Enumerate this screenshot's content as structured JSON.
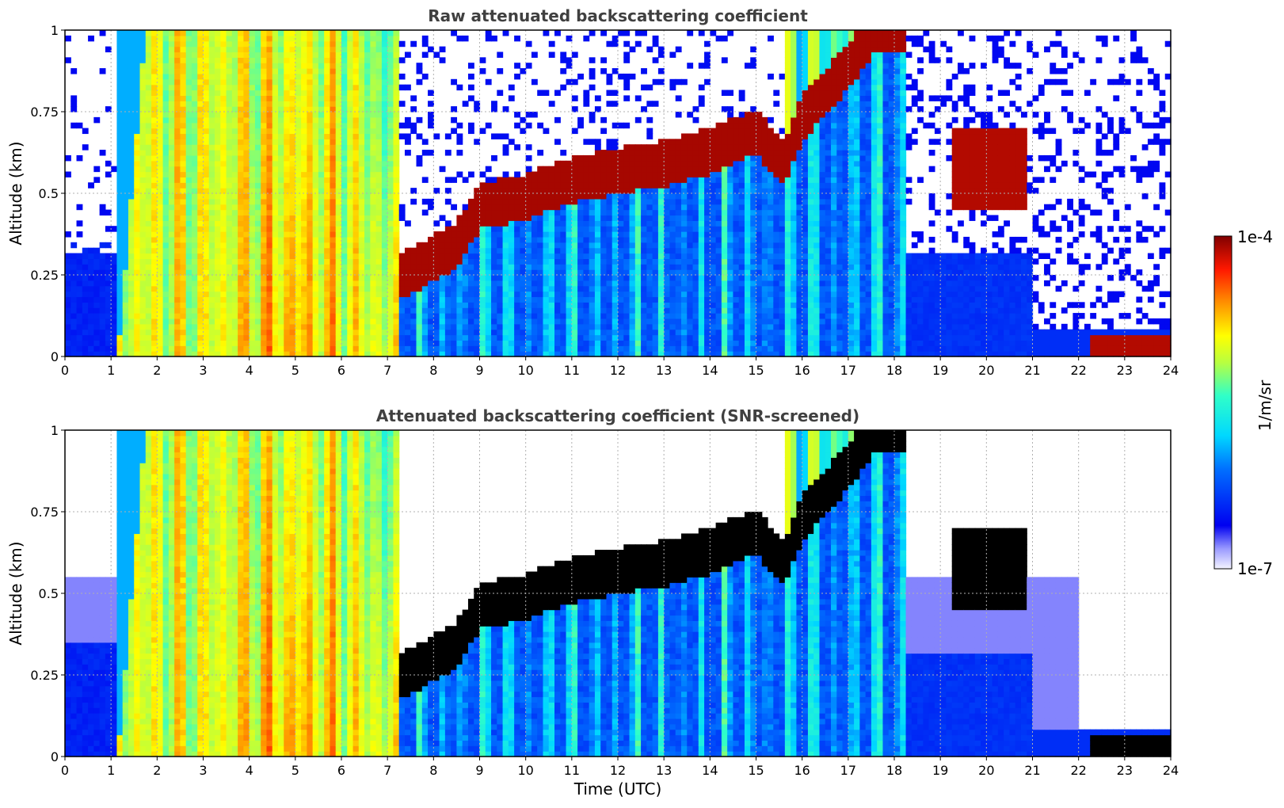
{
  "chart_data": [
    {
      "type": "heatmap",
      "title": "Raw attenuated backscattering coefficient",
      "ylabel": "Altitude (km)",
      "xlabel": "",
      "xlim": [
        0,
        24
      ],
      "ylim": [
        0,
        1
      ],
      "x_ticks": [
        "0",
        "1",
        "2",
        "3",
        "4",
        "5",
        "6",
        "7",
        "8",
        "9",
        "10",
        "11",
        "12",
        "13",
        "14",
        "15",
        "16",
        "17",
        "18",
        "19",
        "20",
        "21",
        "22",
        "23",
        "24"
      ],
      "y_ticks": [
        "0",
        "0.25",
        "0.5",
        "0.75",
        "1"
      ],
      "grid": true,
      "log_color_scale": true,
      "features": {
        "fog_layer": {
          "x": [
            1.0,
            7.2
          ],
          "y": [
            0,
            1.0
          ],
          "level": 0.65
        },
        "rising_cloud_base": [
          [
            7.2,
            0.23
          ],
          [
            8.5,
            0.33
          ],
          [
            9,
            0.45
          ],
          [
            10,
            0.48
          ],
          [
            11,
            0.53
          ],
          [
            12,
            0.56
          ],
          [
            13,
            0.58
          ],
          [
            14,
            0.62
          ],
          [
            15,
            0.68
          ],
          [
            15.6,
            0.58
          ],
          [
            16,
            0.72
          ],
          [
            17,
            0.88
          ],
          [
            17.6,
            1.0
          ]
        ],
        "late_cloud": {
          "x": [
            19.2,
            20.8
          ],
          "y": [
            0.45,
            0.7
          ]
        },
        "surface_layer": {
          "x": [
            22.2,
            24
          ],
          "y": [
            0.0,
            0.06
          ]
        }
      }
    },
    {
      "type": "heatmap",
      "title": "Attenuated backscattering coefficient (SNR-screened)",
      "ylabel": "Altitude (km)",
      "xlabel": "Time (UTC)",
      "xlim": [
        0,
        24
      ],
      "ylim": [
        0,
        1
      ],
      "x_ticks": [
        "0",
        "1",
        "2",
        "3",
        "4",
        "5",
        "6",
        "7",
        "8",
        "9",
        "10",
        "11",
        "12",
        "13",
        "14",
        "15",
        "16",
        "17",
        "18",
        "19",
        "20",
        "21",
        "22",
        "23",
        "24"
      ],
      "y_ticks": [
        "0",
        "0.25",
        "0.5",
        "0.75",
        "1"
      ],
      "grid": true,
      "log_color_scale": true
    }
  ],
  "colorbar": {
    "max_label": "1e-4",
    "min_label": "1e-7",
    "units": "1/m/sr",
    "scale": "log"
  }
}
